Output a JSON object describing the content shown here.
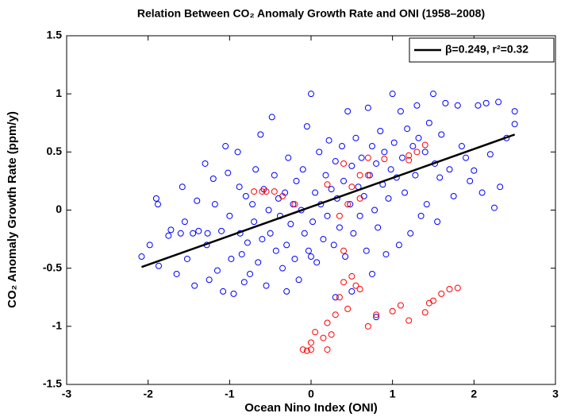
{
  "chart_data": {
    "type": "scatter",
    "title": "Relation Between CO₂ Anomaly Growth Rate and ONI (1958–2008)",
    "x_label": "Ocean Nino Index (ONI)",
    "y_label": "CO₂ Anomaly Growth Rate (ppm/y)",
    "xlim": [
      -3,
      3
    ],
    "ylim": [
      -1.5,
      1.5
    ],
    "xticks": [
      -3,
      -2,
      -1,
      0,
      1,
      2,
      3
    ],
    "yticks": [
      -1.5,
      -1,
      -0.5,
      0,
      0.5,
      1,
      1.5
    ],
    "legend": "top-right",
    "series": [
      {
        "color": "#0000ff",
        "type": "scatter",
        "x": [
          -2.08,
          -1.98,
          -1.9,
          -1.88,
          -1.87,
          -1.75,
          -1.72,
          -1.65,
          -1.6,
          -1.58,
          -1.55,
          -1.52,
          -1.45,
          -1.43,
          -1.4,
          -1.38,
          -1.3,
          -1.28,
          -1.27,
          -1.25,
          -1.2,
          -1.18,
          -1.15,
          -1.1,
          -1.08,
          -1.05,
          -1.02,
          -1.0,
          -0.98,
          -0.95,
          -0.9,
          -0.88,
          -0.87,
          -0.85,
          -0.82,
          -0.8,
          -0.78,
          -0.75,
          -0.72,
          -0.7,
          -0.68,
          -0.65,
          -0.62,
          -0.6,
          -0.58,
          -0.55,
          -0.52,
          -0.5,
          -0.48,
          -0.45,
          -0.43,
          -0.4,
          -0.38,
          -0.35,
          -0.32,
          -0.3,
          -0.28,
          -0.25,
          -0.22,
          -0.2,
          -0.18,
          -0.15,
          -0.12,
          -0.1,
          -0.08,
          -0.05,
          -0.03,
          0.0,
          0.02,
          0.05,
          0.07,
          0.1,
          0.12,
          0.15,
          0.18,
          0.2,
          0.22,
          0.25,
          0.28,
          0.3,
          0.32,
          0.35,
          0.38,
          0.4,
          0.42,
          0.45,
          0.48,
          0.5,
          0.52,
          0.55,
          0.58,
          0.6,
          0.62,
          0.65,
          0.68,
          0.7,
          0.72,
          0.75,
          0.78,
          0.8,
          0.82,
          0.85,
          0.88,
          0.9,
          0.92,
          0.95,
          0.98,
          1.0,
          1.02,
          1.05,
          1.08,
          1.1,
          1.12,
          1.15,
          1.18,
          1.22,
          1.25,
          1.28,
          1.3,
          1.32,
          1.35,
          1.4,
          1.42,
          1.45,
          1.5,
          1.52,
          1.55,
          1.58,
          1.6,
          1.65,
          1.7,
          1.75,
          1.8,
          1.85,
          1.9,
          1.95,
          2.0,
          2.05,
          2.1,
          2.15,
          2.2,
          2.25,
          2.3,
          2.32,
          2.4,
          2.5,
          2.5,
          0.5,
          0.3,
          0.0,
          -0.3,
          0.8,
          0.75
        ],
        "values": [
          -0.4,
          -0.3,
          0.1,
          0.05,
          -0.48,
          -0.22,
          -0.17,
          -0.55,
          -0.2,
          0.2,
          -0.1,
          -0.42,
          -0.2,
          -0.65,
          0.08,
          -0.18,
          0.4,
          -0.3,
          -0.2,
          -0.6,
          0.27,
          0.05,
          -0.52,
          -0.18,
          -0.7,
          0.55,
          0.32,
          -0.05,
          -0.42,
          -0.72,
          0.5,
          0.2,
          -0.2,
          -0.38,
          -0.62,
          0.12,
          -0.28,
          -0.55,
          0.05,
          -0.1,
          0.35,
          -0.45,
          0.65,
          -0.25,
          0.18,
          -0.65,
          0.0,
          -0.2,
          0.8,
          0.3,
          -0.35,
          0.1,
          -0.05,
          -0.5,
          0.15,
          -0.3,
          0.45,
          -0.12,
          0.05,
          -0.42,
          0.25,
          -0.6,
          0.0,
          0.35,
          -0.2,
          0.72,
          -0.35,
          1.0,
          -0.1,
          0.15,
          -0.45,
          0.5,
          0.05,
          -0.25,
          0.3,
          -0.05,
          0.6,
          0.18,
          -0.3,
          0.42,
          0.1,
          -0.15,
          0.55,
          0.25,
          -0.4,
          0.85,
          0.05,
          0.38,
          -0.2,
          0.62,
          0.2,
          -0.05,
          0.45,
          0.12,
          -0.35,
          0.88,
          0.3,
          0.55,
          0.0,
          0.4,
          -0.15,
          0.68,
          0.22,
          0.5,
          -0.38,
          0.1,
          0.35,
          1.0,
          0.58,
          0.28,
          -0.3,
          0.85,
          0.45,
          0.15,
          0.7,
          -0.2,
          0.55,
          0.3,
          0.9,
          0.62,
          -0.05,
          0.5,
          0.05,
          0.75,
          1.0,
          0.4,
          -0.1,
          0.28,
          0.65,
          0.92,
          0.35,
          0.12,
          0.9,
          0.55,
          0.45,
          0.25,
          0.34,
          0.9,
          0.15,
          0.92,
          0.48,
          0.02,
          0.93,
          0.2,
          0.62,
          0.85,
          0.74,
          -0.7,
          -0.75,
          -0.4,
          -0.7,
          -0.92,
          -0.55
        ]
      },
      {
        "color": "#ff0000",
        "type": "scatter",
        "x": [
          -0.7,
          -0.6,
          -0.55,
          -0.45,
          -0.35,
          0.2,
          0.5,
          0.6,
          0.7,
          0.4,
          0.7,
          0.9,
          1.2,
          1.3,
          0.45,
          0.6,
          0.35,
          0.4,
          0.4,
          0.5,
          0.55,
          0.6,
          0.35,
          0.45,
          0.3,
          0.2,
          0.25,
          0.2,
          0.0,
          -0.05,
          -0.1,
          0.0,
          0.05,
          0.15,
          0.7,
          0.8,
          1.0,
          1.1,
          1.2,
          1.4,
          1.45,
          1.5,
          1.6,
          1.7,
          1.8,
          -0.2,
          1.4,
          1.2
        ],
        "values": [
          0.16,
          0.16,
          0.16,
          0.16,
          0.12,
          0.22,
          0.2,
          0.3,
          0.3,
          0.4,
          0.45,
          0.44,
          0.47,
          0.5,
          0.05,
          0.1,
          -0.05,
          -0.35,
          -0.62,
          -0.57,
          -0.65,
          -0.68,
          -0.75,
          -0.85,
          -0.9,
          -0.97,
          -1.07,
          -1.2,
          -1.2,
          -1.21,
          -1.2,
          -1.14,
          -1.05,
          -1.1,
          -1.0,
          -0.9,
          -0.87,
          -0.82,
          -0.95,
          -0.88,
          -0.8,
          -0.78,
          -0.72,
          -0.68,
          -0.67,
          0.05,
          0.56,
          0.43
        ]
      },
      {
        "name": "β=0.249, r²=0.32",
        "color": "#000000",
        "type": "line",
        "x": [
          -2.08,
          2.5
        ],
        "values": [
          -0.49,
          0.65
        ]
      }
    ]
  }
}
